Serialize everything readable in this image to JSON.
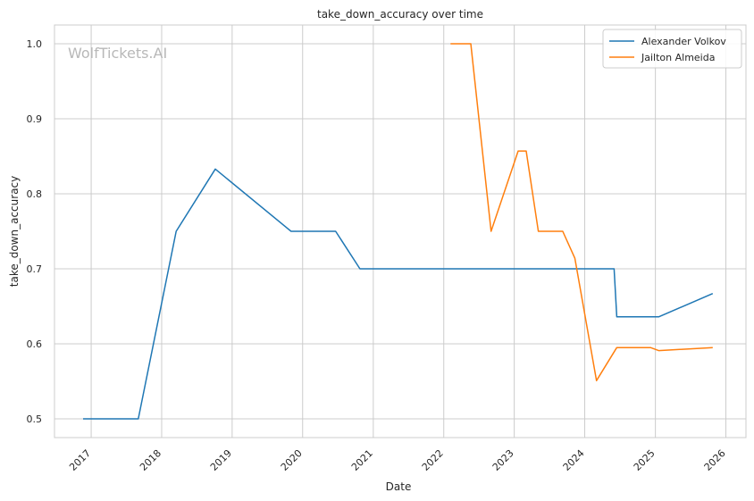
{
  "watermark": "WolfTickets.AI",
  "chart_data": {
    "type": "line",
    "title": "take_down_accuracy over time",
    "xlabel": "Date",
    "ylabel": "take_down_accuracy",
    "x_ticks": [
      "2017",
      "2018",
      "2019",
      "2020",
      "2021",
      "2022",
      "2023",
      "2024",
      "2025",
      "2026"
    ],
    "y_ticks": [
      "0.5",
      "0.6",
      "0.7",
      "0.8",
      "0.9",
      "1.0"
    ],
    "xlim": [
      "2016-06-25",
      "2026-04-15"
    ],
    "ylim": [
      0.475,
      1.025
    ],
    "grid": true,
    "legend_position": "top-right",
    "series": [
      {
        "name": "Alexander Volkov",
        "color": "#1f77b4",
        "points": [
          [
            "2016-11-20",
            0.5
          ],
          [
            "2017-09-02",
            0.5
          ],
          [
            "2018-03-17",
            0.75
          ],
          [
            "2018-10-06",
            0.833
          ],
          [
            "2019-11-02",
            0.75
          ],
          [
            "2020-06-20",
            0.75
          ],
          [
            "2020-10-24",
            0.7
          ],
          [
            "2024-06-01",
            0.7
          ],
          [
            "2024-06-15",
            0.636
          ],
          [
            "2025-01-18",
            0.636
          ],
          [
            "2025-10-25",
            0.667
          ]
        ]
      },
      {
        "name": "Jailton Almeida",
        "color": "#ff7f0e",
        "points": [
          [
            "2022-02-05",
            1.0
          ],
          [
            "2022-05-21",
            1.0
          ],
          [
            "2022-09-03",
            0.75
          ],
          [
            "2023-01-21",
            0.857
          ],
          [
            "2023-03-04",
            0.857
          ],
          [
            "2023-05-06",
            0.75
          ],
          [
            "2023-09-09",
            0.75
          ],
          [
            "2023-11-11",
            0.714
          ],
          [
            "2024-03-02",
            0.551
          ],
          [
            "2024-06-15",
            0.595
          ],
          [
            "2024-12-07",
            0.595
          ],
          [
            "2025-01-18",
            0.591
          ],
          [
            "2025-10-25",
            0.595
          ]
        ]
      }
    ]
  }
}
